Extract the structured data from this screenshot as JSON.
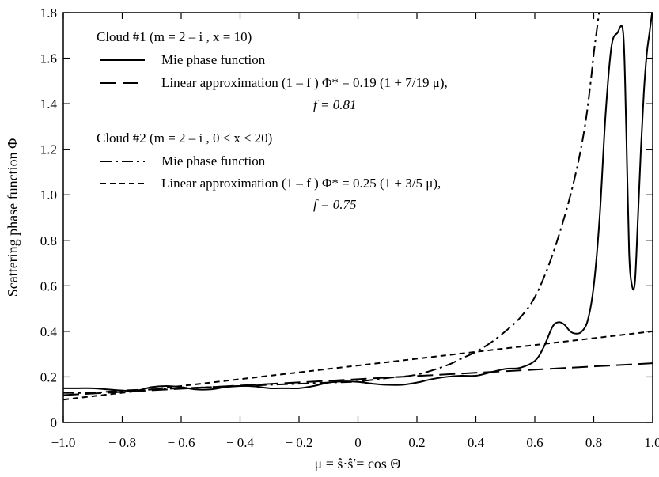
{
  "chart_data": {
    "type": "line",
    "xlabel": "μ = ŝ·ŝ′= cos Θ",
    "ylabel": "Scattering phase function  Φ",
    "xlim": [
      -1.0,
      1.0
    ],
    "ylim": [
      0,
      1.8
    ],
    "grid": false,
    "legend_placement": "top-left",
    "x_tick_labels": [
      "−1.0",
      "− 0.8",
      "− 0.6",
      "− 0.4",
      "− 0.2",
      "0",
      "0.2",
      "0.4",
      "0.6",
      "0.8",
      "1.0"
    ],
    "y_tick_labels": [
      "0",
      "0.2",
      "0.4",
      "0.6",
      "0.8",
      "1.0",
      "1.2",
      "1.4",
      "1.6",
      "1.8"
    ],
    "legend": {
      "cloud1_title": "Cloud #1  (m = 2 – i , x = 10)",
      "cloud1_mie": "Mie phase function",
      "cloud1_linear": "Linear approximation  (1 – f ) Φ* = 0.19 (1 + 7/19 μ),",
      "cloud1_f": "f = 0.81",
      "cloud2_title": "Cloud #2  (m = 2 – i , 0 ≤ x ≤ 20)",
      "cloud2_mie": "Mie phase function",
      "cloud2_linear": "Linear approximation  (1 – f ) Φ* = 0.25 (1 + 3/5 μ),",
      "cloud2_f": "f = 0.75"
    },
    "series": [
      {
        "name": "Mie phase function",
        "group": "Cloud #1",
        "style": "solid",
        "x": [
          -1.0,
          -0.95,
          -0.9,
          -0.85,
          -0.8,
          -0.75,
          -0.7,
          -0.65,
          -0.6,
          -0.55,
          -0.5,
          -0.45,
          -0.4,
          -0.35,
          -0.3,
          -0.25,
          -0.2,
          -0.15,
          -0.1,
          -0.05,
          0.0,
          0.05,
          0.1,
          0.15,
          0.2,
          0.25,
          0.3,
          0.35,
          0.4,
          0.45,
          0.5,
          0.55,
          0.6,
          0.63,
          0.66,
          0.68,
          0.7,
          0.72,
          0.74,
          0.76,
          0.78,
          0.8,
          0.82,
          0.84,
          0.86,
          0.88,
          0.9,
          0.91,
          0.92,
          0.93,
          0.94,
          0.95,
          0.96,
          0.97,
          0.98,
          0.99,
          1.0
        ],
        "values": [
          0.15,
          0.15,
          0.15,
          0.145,
          0.14,
          0.14,
          0.155,
          0.16,
          0.155,
          0.145,
          0.145,
          0.155,
          0.16,
          0.158,
          0.15,
          0.15,
          0.15,
          0.16,
          0.175,
          0.18,
          0.178,
          0.17,
          0.165,
          0.165,
          0.175,
          0.19,
          0.2,
          0.205,
          0.205,
          0.22,
          0.235,
          0.24,
          0.27,
          0.33,
          0.42,
          0.44,
          0.43,
          0.4,
          0.39,
          0.4,
          0.45,
          0.6,
          0.9,
          1.35,
          1.65,
          1.71,
          1.71,
          1.3,
          0.75,
          0.6,
          0.62,
          0.9,
          1.2,
          1.45,
          1.62,
          1.72,
          1.82
        ]
      },
      {
        "name": "Linear approximation",
        "group": "Cloud #1",
        "style": "long-dash",
        "x": [
          -1.0,
          1.0
        ],
        "values": [
          0.12,
          0.26
        ]
      },
      {
        "name": "Mie phase function",
        "group": "Cloud #2",
        "style": "dash-dot",
        "x": [
          -1.0,
          -0.9,
          -0.8,
          -0.7,
          -0.6,
          -0.5,
          -0.4,
          -0.3,
          -0.2,
          -0.1,
          0.0,
          0.1,
          0.2,
          0.3,
          0.35,
          0.4,
          0.45,
          0.5,
          0.55,
          0.6,
          0.65,
          0.7,
          0.74,
          0.77,
          0.79,
          0.8,
          0.81,
          0.82
        ],
        "values": [
          0.13,
          0.13,
          0.14,
          0.145,
          0.15,
          0.155,
          0.16,
          0.165,
          0.17,
          0.175,
          0.18,
          0.195,
          0.21,
          0.25,
          0.28,
          0.31,
          0.35,
          0.4,
          0.46,
          0.55,
          0.7,
          0.9,
          1.1,
          1.3,
          1.5,
          1.62,
          1.72,
          1.82
        ]
      },
      {
        "name": "Linear approximation",
        "group": "Cloud #2",
        "style": "short-dash",
        "x": [
          -1.0,
          1.0
        ],
        "values": [
          0.1,
          0.4
        ]
      }
    ]
  }
}
